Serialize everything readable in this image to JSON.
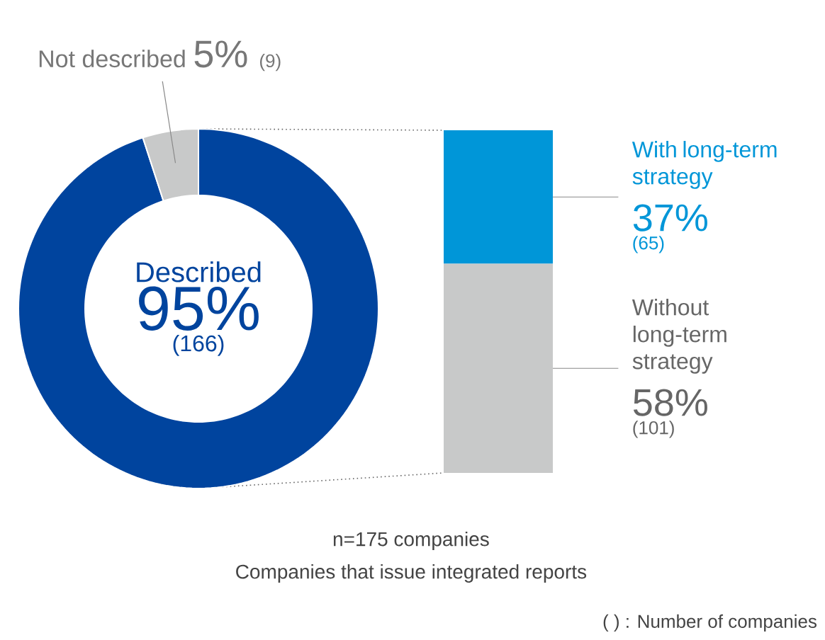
{
  "chart_data": [
    {
      "type": "donut",
      "categories": [
        "Described",
        "Not described"
      ],
      "values": [
        95,
        5
      ],
      "value_labels": [
        "95%",
        "5%"
      ],
      "colors": [
        "#00449e",
        "#c8c9c9"
      ],
      "annotations": [
        "(166)",
        "(9)"
      ]
    },
    {
      "type": "bar",
      "stacked": true,
      "categories": [
        null
      ],
      "ylim": [
        0,
        95
      ],
      "series": [
        {
          "name": "Without long-term strategy",
          "color": "#c8c9c9",
          "values": [
            58
          ],
          "value_labels": [
            "58%"
          ]
        },
        {
          "name": "With long-term strategy",
          "color": "#0096d8",
          "values": [
            37
          ],
          "value_labels": [
            "37%"
          ]
        }
      ],
      "annotations": [
        "(101)",
        "(65)",
        "n=175 companies",
        "Companies that issue integrated reports",
        "( ) : Number of companies"
      ]
    }
  ]
}
